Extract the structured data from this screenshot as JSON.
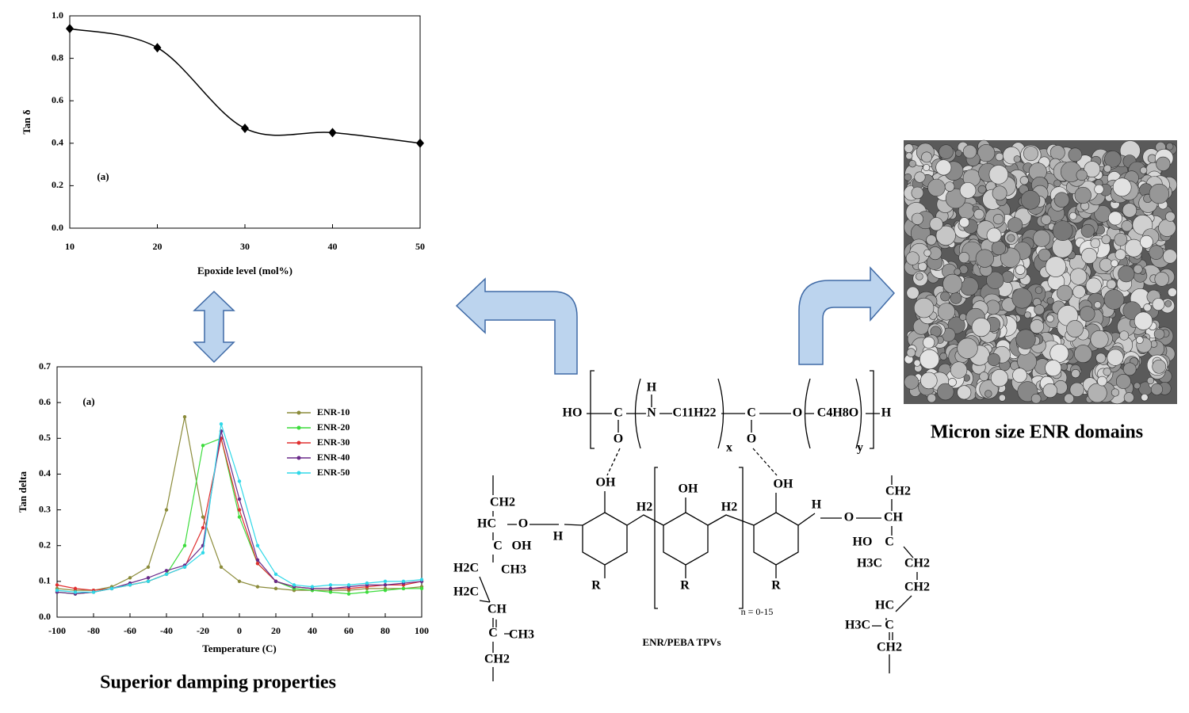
{
  "chart_data": [
    {
      "type": "line",
      "x": [
        10,
        20,
        30,
        40,
        50
      ],
      "series": [
        {
          "color": "#000000",
          "values": [
            0.94,
            0.85,
            0.47,
            0.45,
            0.4
          ]
        }
      ],
      "smooth": true,
      "marker": "diamond",
      "xlabel": "Epoxide level (mol%)",
      "ylabel": "Tan δ",
      "annotation": "(a)",
      "xlim": [
        10,
        50
      ],
      "xticks": [
        10,
        20,
        30,
        40,
        50
      ],
      "ylim": [
        0,
        1
      ],
      "yticks": [
        {
          "value": 0,
          "label": "0.0"
        },
        0.2,
        0.4,
        0.6,
        0.8,
        {
          "value": 1,
          "label": "1.0"
        }
      ]
    },
    {
      "type": "line",
      "x": [
        -100,
        -90,
        -80,
        -70,
        -60,
        -50,
        -40,
        -30,
        -20,
        -10,
        0,
        10,
        20,
        30,
        40,
        50,
        60,
        70,
        80,
        90,
        100
      ],
      "series": [
        {
          "name": "ENR-10",
          "color": "#8b8b3a",
          "values": [
            0.08,
            0.075,
            0.075,
            0.085,
            0.11,
            0.14,
            0.3,
            0.56,
            0.28,
            0.14,
            0.1,
            0.085,
            0.08,
            0.075,
            0.075,
            0.075,
            0.075,
            0.08,
            0.08,
            0.08,
            0.085
          ]
        },
        {
          "name": "ENR-20",
          "color": "#3cdc3c",
          "values": [
            0.07,
            0.065,
            0.07,
            0.08,
            0.09,
            0.1,
            0.12,
            0.2,
            0.48,
            0.5,
            0.28,
            0.15,
            0.1,
            0.08,
            0.075,
            0.07,
            0.065,
            0.07,
            0.075,
            0.08,
            0.08
          ]
        },
        {
          "name": "ENR-30",
          "color": "#e03030",
          "values": [
            0.09,
            0.08,
            0.075,
            0.08,
            0.09,
            0.1,
            0.12,
            0.14,
            0.25,
            0.5,
            0.3,
            0.15,
            0.1,
            0.085,
            0.08,
            0.08,
            0.08,
            0.085,
            0.09,
            0.09,
            0.1
          ]
        },
        {
          "name": "ENR-40",
          "color": "#6a2a8a",
          "values": [
            0.07,
            0.065,
            0.07,
            0.08,
            0.095,
            0.11,
            0.13,
            0.145,
            0.2,
            0.52,
            0.33,
            0.16,
            0.1,
            0.085,
            0.08,
            0.08,
            0.085,
            0.09,
            0.09,
            0.095,
            0.1
          ]
        },
        {
          "name": "ENR-50",
          "color": "#30d8e8",
          "values": [
            0.075,
            0.07,
            0.07,
            0.08,
            0.09,
            0.1,
            0.12,
            0.14,
            0.18,
            0.54,
            0.38,
            0.2,
            0.12,
            0.09,
            0.085,
            0.09,
            0.09,
            0.095,
            0.1,
            0.1,
            0.105
          ]
        }
      ],
      "marker": "circle",
      "legend": "upper right",
      "xlabel": "Temperature (C)",
      "ylabel": "Tan delta",
      "annotation": "(a)",
      "xlim": [
        -100,
        100
      ],
      "xticks": [
        -100,
        -80,
        -60,
        -40,
        -20,
        0,
        20,
        40,
        60,
        80,
        100
      ],
      "ylim": [
        0,
        0.7
      ],
      "yticks": [
        {
          "value": 0,
          "label": "0.0"
        },
        0.1,
        0.2,
        0.3,
        0.4,
        0.5,
        0.6,
        0.7
      ]
    }
  ],
  "captions": {
    "left": "Superior damping properties",
    "right": "Micron size ENR domains",
    "center": "ENR/PEBA TPVs",
    "repeat": "n = 0-15"
  },
  "structure": {
    "labels": [
      "HO",
      "C",
      "O",
      "H",
      "N",
      "C11H22",
      "x",
      "C",
      "O",
      "O",
      "C4H8O",
      "y",
      "H",
      "OH",
      "OH",
      "OH",
      "CH2",
      "HC",
      "O",
      "H",
      "C",
      "OH",
      "CH3",
      "H2C",
      "H2C",
      "CH",
      "C",
      "CH3",
      "CH2",
      "R",
      "R",
      "R",
      "H2",
      "H2",
      "H",
      "O",
      "CH2",
      "CH",
      "HO",
      "C",
      "H3C",
      "CH2",
      "CH2",
      "HC",
      "H3C",
      "C",
      "CH2"
    ]
  }
}
